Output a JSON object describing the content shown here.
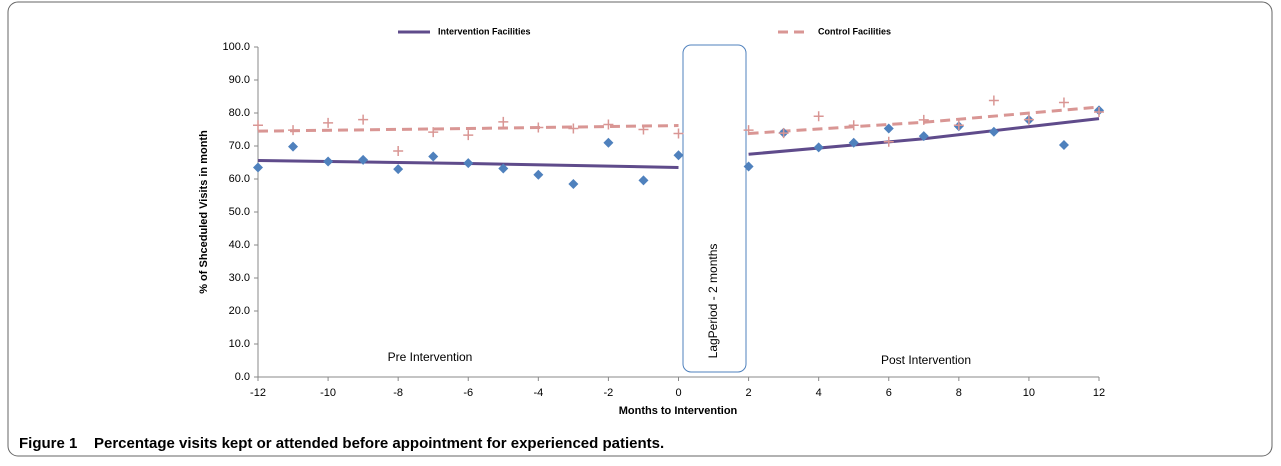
{
  "chart_data": {
    "type": "scatter",
    "x_label": "Months to Intervention",
    "y_label": "% of Shceduled Visits in month",
    "xlim": [
      -12,
      12
    ],
    "ylim": [
      0,
      100
    ],
    "xticks": [
      -12,
      -10,
      -8,
      -6,
      -4,
      -2,
      0,
      2,
      4,
      6,
      8,
      10,
      12
    ],
    "yticks": [
      {
        "value": 0,
        "label": "0.0"
      },
      {
        "value": 10,
        "label": "10.0"
      },
      {
        "value": 20,
        "label": "20.0"
      },
      {
        "value": 30,
        "label": "30.0"
      },
      {
        "value": 40,
        "label": "40.0"
      },
      {
        "value": 50,
        "label": "50.0"
      },
      {
        "value": 60,
        "label": "60.0"
      },
      {
        "value": 70,
        "label": "70.0"
      },
      {
        "value": 80,
        "label": "80.0"
      },
      {
        "value": 90,
        "label": "90.0"
      },
      {
        "value": 100,
        "label": "100.0"
      }
    ],
    "annotations": [
      "Pre Intervention",
      "Post Intervention",
      "LagPeriod - 2 months"
    ],
    "series": [
      {
        "name": "Intervention Facilities",
        "color": "#5f4b8b",
        "style": "solid",
        "x": [
          -12,
          -6,
          0,
          1,
          2,
          7,
          12
        ],
        "values": [
          65.6,
          64.7,
          63.5,
          null,
          67.5,
          72.2,
          78.3
        ]
      },
      {
        "name": "Control Facilities",
        "color": "#d99694",
        "style": "dashed",
        "x": [
          -12,
          -6,
          0,
          1,
          2,
          7,
          12
        ],
        "values": [
          74.5,
          75.3,
          76.2,
          null,
          73.8,
          77.2,
          81.8
        ]
      },
      {
        "marker": "diamond",
        "color": "#4f81bd",
        "x": [
          -12,
          -11,
          -10,
          -9,
          -8,
          -7,
          -6,
          -5,
          -4,
          -3,
          -2,
          -1,
          0,
          2,
          3,
          4,
          5,
          6,
          7,
          8,
          9,
          10,
          11,
          12
        ],
        "values": [
          63.5,
          69.8,
          65.3,
          65.8,
          63.0,
          66.8,
          64.8,
          63.2,
          61.3,
          58.5,
          71.0,
          59.6,
          67.2,
          63.8,
          74.0,
          69.6,
          71.0,
          75.3,
          73.0,
          76.0,
          74.3,
          77.9,
          70.3,
          80.8
        ]
      },
      {
        "marker": "plus",
        "color": "#d99694",
        "x": [
          -12,
          -11,
          -10,
          -9,
          -8,
          -7,
          -6,
          -5,
          -4,
          -3,
          -2,
          -1,
          0,
          2,
          3,
          4,
          5,
          6,
          7,
          8,
          9,
          10,
          11,
          12
        ],
        "values": [
          76.3,
          74.8,
          77.0,
          78.0,
          68.5,
          74.2,
          73.3,
          77.3,
          75.6,
          75.3,
          76.5,
          75.0,
          73.8,
          74.8,
          73.9,
          79.0,
          76.3,
          71.3,
          77.9,
          76.3,
          83.8,
          78.0,
          83.2,
          80.3
        ]
      }
    ]
  },
  "caption": {
    "label": "Figure 1",
    "text": "Percentage visits kept or attended before appointment for experienced patients."
  }
}
